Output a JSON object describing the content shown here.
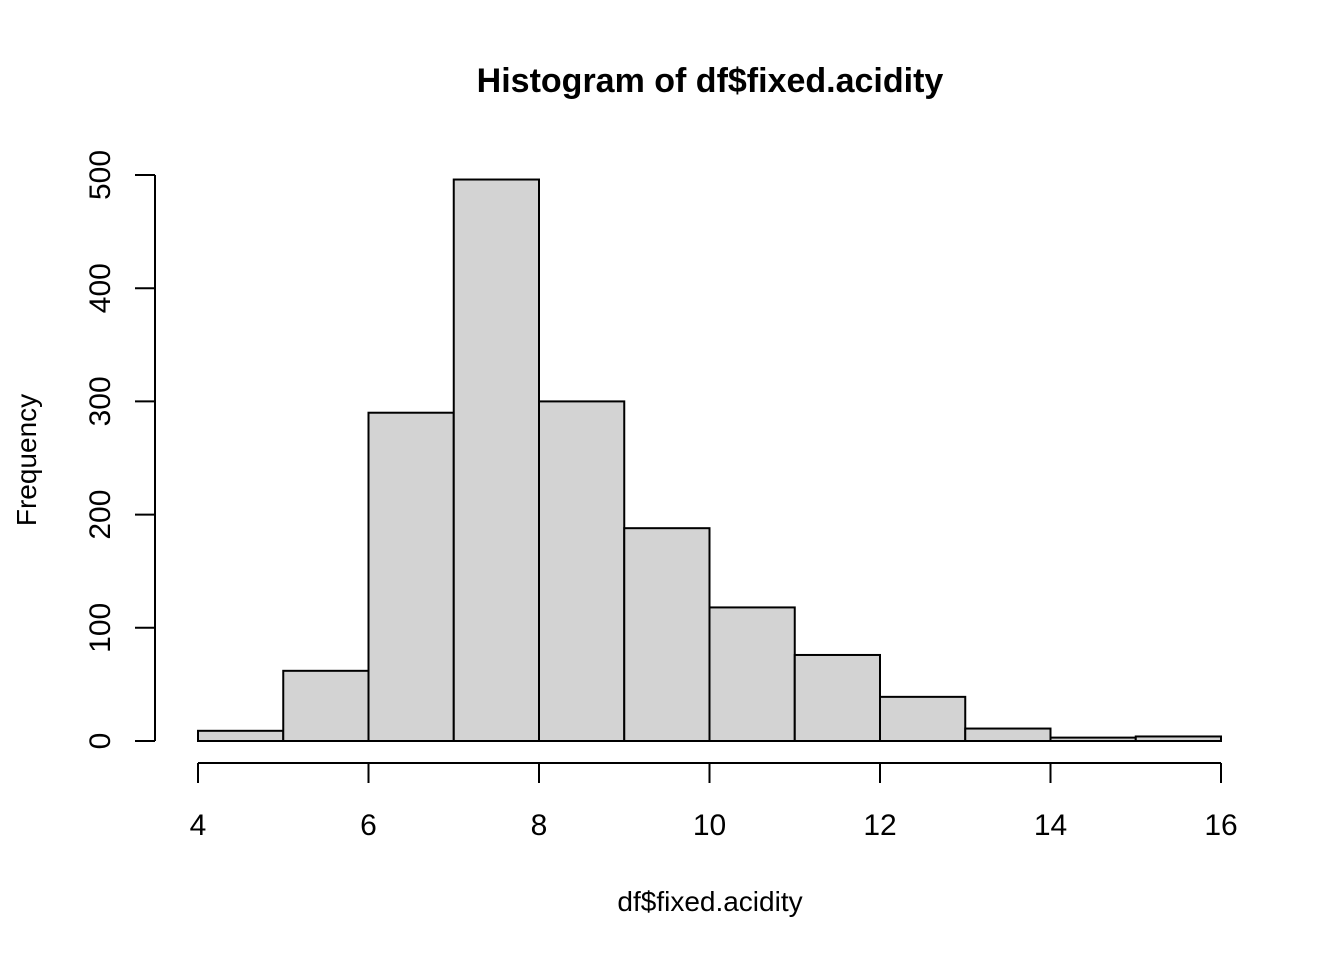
{
  "chart_data": {
    "type": "bar",
    "title": "Histogram of df$fixed.acidity",
    "xlabel": "df$fixed.acidity",
    "ylabel": "Frequency",
    "bins": [
      {
        "start": 4,
        "end": 5,
        "count": 9
      },
      {
        "start": 5,
        "end": 6,
        "count": 62
      },
      {
        "start": 6,
        "end": 7,
        "count": 290
      },
      {
        "start": 7,
        "end": 8,
        "count": 496
      },
      {
        "start": 8,
        "end": 9,
        "count": 300
      },
      {
        "start": 9,
        "end": 10,
        "count": 188
      },
      {
        "start": 10,
        "end": 11,
        "count": 118
      },
      {
        "start": 11,
        "end": 12,
        "count": 76
      },
      {
        "start": 12,
        "end": 13,
        "count": 39
      },
      {
        "start": 13,
        "end": 14,
        "count": 11
      },
      {
        "start": 14,
        "end": 15,
        "count": 3
      },
      {
        "start": 15,
        "end": 16,
        "count": 4
      }
    ],
    "xlim": [
      4,
      16
    ],
    "ylim": [
      0,
      500
    ],
    "x_ticks": [
      "4",
      "6",
      "8",
      "10",
      "12",
      "14",
      "16"
    ],
    "y_ticks": [
      "0",
      "100",
      "200",
      "300",
      "400",
      "500"
    ],
    "grid": false,
    "bar_color": "#d3d3d3",
    "border_color": "#000000"
  }
}
